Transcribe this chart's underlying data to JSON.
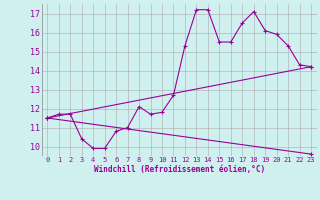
{
  "xlabel": "Windchill (Refroidissement éolien,°C)",
  "background_color": "#cff0ee",
  "grid_color": "#aaaaaa",
  "line_color": "#990099",
  "xlim": [
    -0.5,
    23.5
  ],
  "ylim": [
    9.5,
    17.5
  ],
  "xticks": [
    0,
    1,
    2,
    3,
    4,
    5,
    6,
    7,
    8,
    9,
    10,
    11,
    12,
    13,
    14,
    15,
    16,
    17,
    18,
    19,
    20,
    21,
    22,
    23
  ],
  "yticks": [
    10,
    11,
    12,
    13,
    14,
    15,
    16,
    17
  ],
  "series1_x": [
    0,
    1,
    2,
    3,
    4,
    5,
    6,
    7,
    8,
    9,
    10,
    11,
    12,
    13,
    14,
    15,
    16,
    17,
    18,
    19,
    20,
    21,
    22,
    23
  ],
  "series1_y": [
    11.5,
    11.7,
    11.7,
    10.4,
    9.9,
    9.9,
    10.8,
    11.0,
    12.1,
    11.7,
    11.8,
    12.7,
    15.3,
    17.2,
    17.2,
    15.5,
    15.5,
    16.5,
    17.1,
    16.1,
    15.9,
    15.3,
    14.3,
    14.2
  ],
  "series2_x": [
    0,
    23
  ],
  "series2_y": [
    11.5,
    14.2
  ],
  "series3_x": [
    0,
    23
  ],
  "series3_y": [
    11.5,
    9.6
  ]
}
